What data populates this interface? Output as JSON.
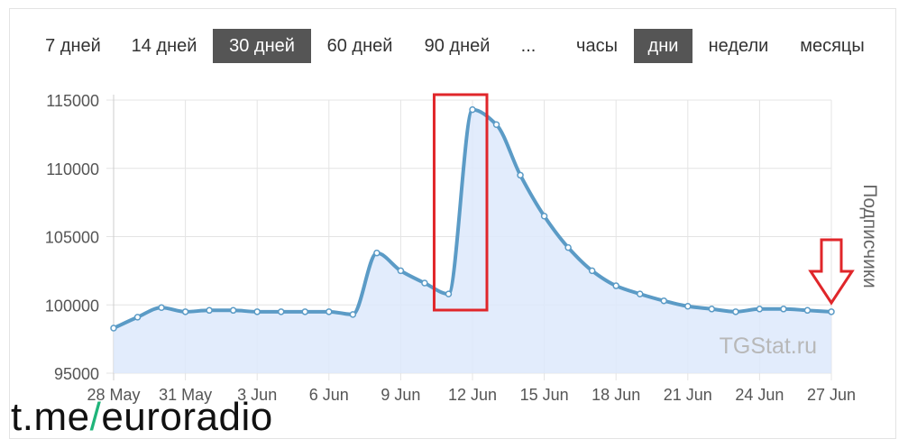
{
  "range_buttons": [
    {
      "label": "7 дней",
      "active": false
    },
    {
      "label": "14 дней",
      "active": false
    },
    {
      "label": "30 дней",
      "active": true
    },
    {
      "label": "60 дней",
      "active": false
    },
    {
      "label": "90 дней",
      "active": false
    },
    {
      "label": "...",
      "active": false
    }
  ],
  "granularity_buttons": [
    {
      "label": "часы",
      "active": false
    },
    {
      "label": "дни",
      "active": true
    },
    {
      "label": "недели",
      "active": false
    },
    {
      "label": "месяцы",
      "active": false
    }
  ],
  "watermark": "TGStat.ru",
  "brand": {
    "prefix": "t.me",
    "slash": "/",
    "name": "euroradio"
  },
  "colors": {
    "line": "#5b9bc6",
    "fill": "#dde9fb",
    "grid": "#e4e4e4",
    "highlight_box": "#e0262a",
    "arrow": "#e0262a",
    "active_button": "#555555",
    "brand_slash": "#1fb47a"
  },
  "chart_data": {
    "type": "area",
    "title": "",
    "xlabel": "",
    "ylabel": "Подписчики",
    "x_ticks": [
      "28 May",
      "31 May",
      "3 Jun",
      "6 Jun",
      "9 Jun",
      "12 Jun",
      "15 Jun",
      "18 Jun",
      "21 Jun",
      "24 Jun",
      "27 Jun"
    ],
    "y_ticks": [
      95000,
      100000,
      105000,
      110000,
      115000
    ],
    "ylim": [
      95000,
      115000
    ],
    "grid": true,
    "legend": "none",
    "series": [
      {
        "x": [
          "28 May",
          "29 May",
          "30 May",
          "31 May",
          "1 Jun",
          "2 Jun",
          "3 Jun",
          "4 Jun",
          "5 Jun",
          "6 Jun",
          "7 Jun",
          "8 Jun",
          "9 Jun",
          "10 Jun",
          "11 Jun",
          "12 Jun",
          "13 Jun",
          "14 Jun",
          "15 Jun",
          "16 Jun",
          "17 Jun",
          "18 Jun",
          "19 Jun",
          "20 Jun",
          "21 Jun",
          "22 Jun",
          "23 Jun",
          "24 Jun",
          "25 Jun",
          "26 Jun",
          "27 Jun"
        ],
        "values": [
          98300,
          99100,
          99800,
          99500,
          99600,
          99600,
          99500,
          99500,
          99500,
          99500,
          99300,
          103800,
          102500,
          101600,
          100800,
          114300,
          113200,
          109500,
          106500,
          104200,
          102500,
          101400,
          100800,
          100300,
          99900,
          99700,
          99500,
          99700,
          99700,
          99600,
          99500
        ]
      }
    ],
    "annotations": [
      {
        "type": "box",
        "from": "11 Jun",
        "to": "12 Jun",
        "color": "#e0262a"
      },
      {
        "type": "arrow-down",
        "at": "27 Jun",
        "color": "#e0262a"
      }
    ]
  }
}
